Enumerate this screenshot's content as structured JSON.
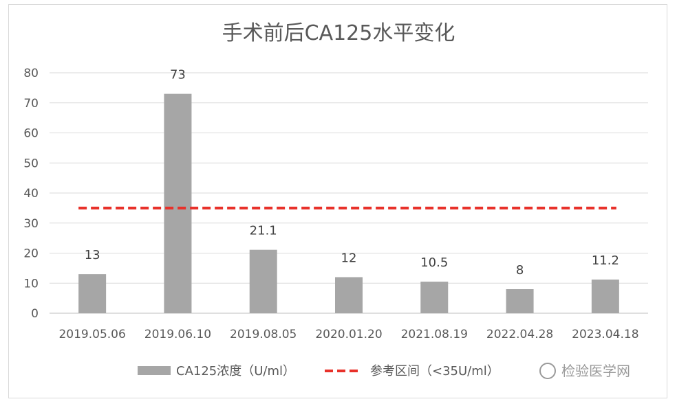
{
  "chart_data": {
    "type": "bar",
    "title": "手术前后CA125水平变化",
    "categories": [
      "2019.05.06",
      "2019.06.10",
      "2019.08.05",
      "2020.01.20",
      "2021.08.19",
      "2022.04.28",
      "2023.04.18"
    ],
    "series": [
      {
        "name": "CA125浓度（U/ml）",
        "values": [
          13,
          73,
          21.1,
          12,
          10.5,
          8,
          11.2
        ],
        "color": "#a6a6a6"
      }
    ],
    "reference_line": {
      "name": "参考区间（<35U/ml）",
      "value": 35,
      "color": "#e8312a",
      "style": "dashed"
    },
    "data_labels": [
      "13",
      "73",
      "21.1",
      "12",
      "10.5",
      "8",
      "11.2"
    ],
    "ylim": [
      0,
      80
    ],
    "yticks": [
      0,
      10,
      20,
      30,
      40,
      50,
      60,
      70,
      80
    ],
    "grid": true,
    "legend_position": "bottom"
  },
  "watermark": "检验医学网"
}
